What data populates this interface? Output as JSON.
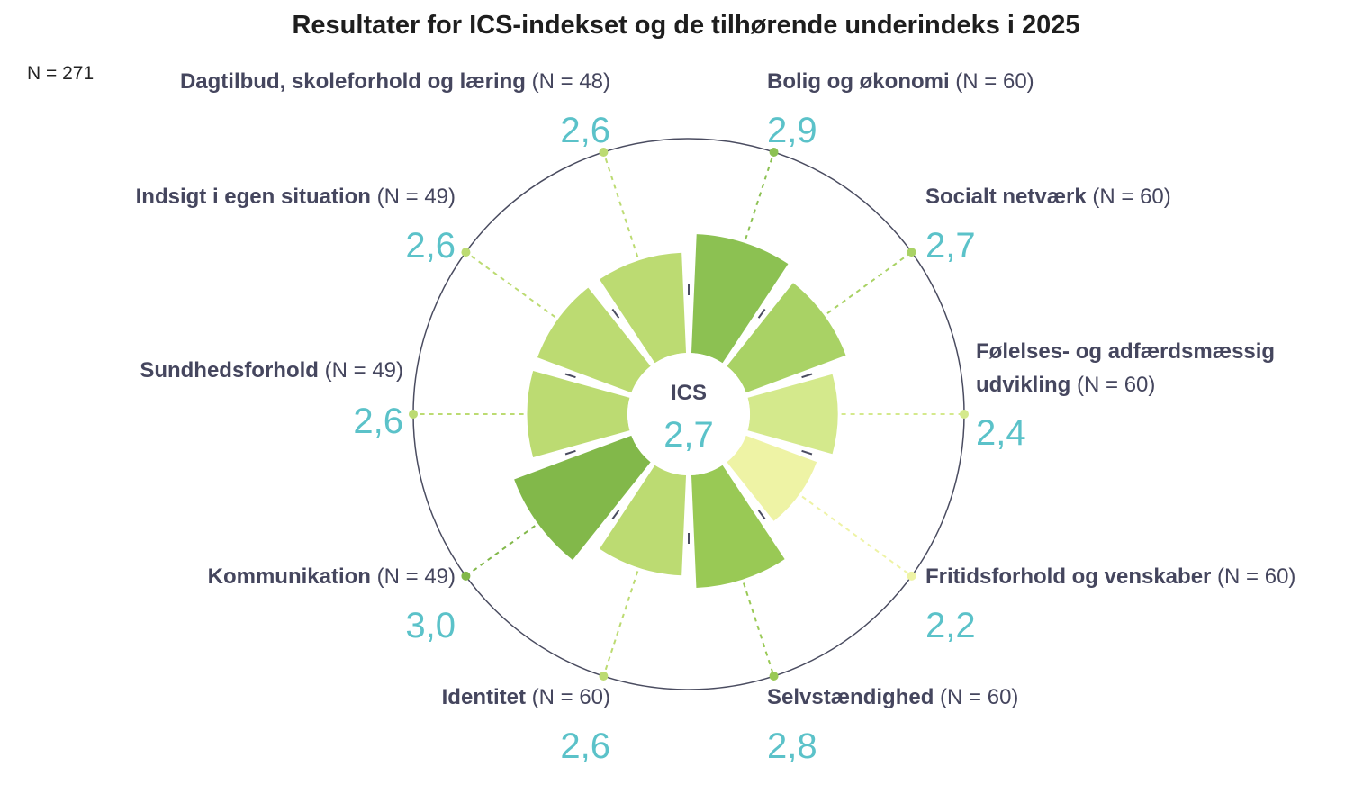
{
  "title": "Resultater for ICS-indekset og de tilhørende underindeks i 2025",
  "total_n": "N = 271",
  "chart_data": {
    "type": "polar-bar",
    "title": "Resultater for ICS-indekset og de tilhørende underindeks i 2025",
    "center": {
      "label": "ICS",
      "value": 2.7,
      "value_text": "2,7"
    },
    "rlim": [
      0,
      4
    ],
    "grid_circles": [
      4
    ],
    "categories": [
      {
        "name": "Bolig og økonomi",
        "n": "(N = 60)",
        "value": 2.9,
        "value_text": "2,9",
        "color": "#8cc152"
      },
      {
        "name": "Socialt netværk",
        "n": "(N = 60)",
        "value": 2.7,
        "value_text": "2,7",
        "color": "#a9d265"
      },
      {
        "name": "Følelses- og adfærdsmæssig udvikling",
        "name_lines": [
          "Følelses- og adfærdsmæssig",
          "udvikling"
        ],
        "n": "(N = 60)",
        "value": 2.4,
        "value_text": "2,4",
        "color": "#d4e98c"
      },
      {
        "name": "Fritidsforhold og venskaber",
        "n": "(N = 60)",
        "value": 2.2,
        "value_text": "2,2",
        "color": "#eef3a5"
      },
      {
        "name": "Selvstændighed",
        "n": "(N = 60)",
        "value": 2.8,
        "value_text": "2,8",
        "color": "#99c955"
      },
      {
        "name": "Identitet",
        "n": "(N = 60)",
        "value": 2.6,
        "value_text": "2,6",
        "color": "#bcdb72"
      },
      {
        "name": "Kommunikation",
        "n": "(N = 49)",
        "value": 3.0,
        "value_text": "3,0",
        "color": "#82b84a"
      },
      {
        "name": "Sundhedsforhold",
        "n": "(N = 49)",
        "value": 2.6,
        "value_text": "2,6",
        "color": "#bcdb72"
      },
      {
        "name": "Indsigt i egen situation",
        "n": "(N = 49)",
        "value": 2.6,
        "value_text": "2,6",
        "color": "#bcdb72"
      },
      {
        "name": "Dagtilbud, skoleforhold og læring",
        "n": "(N = 48)",
        "value": 2.6,
        "value_text": "2,6",
        "color": "#bcdb72"
      }
    ]
  }
}
